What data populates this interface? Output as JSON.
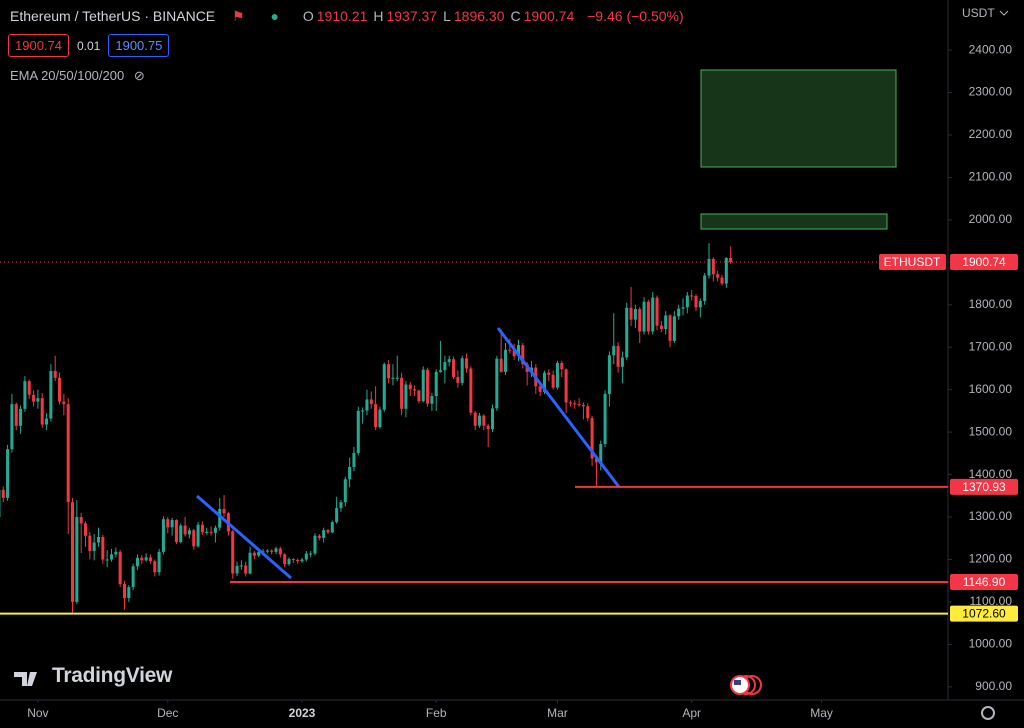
{
  "header": {
    "symbol": "Ethereum / TetherUS · BINANCE",
    "ohlc": [
      {
        "label": "O",
        "value": "1910.21"
      },
      {
        "label": "H",
        "value": "1937.37"
      },
      {
        "label": "L",
        "value": "1896.30"
      },
      {
        "label": "C",
        "value": "1900.74"
      }
    ],
    "change": "−9.46 (−0.50%)",
    "bid": "1900.74",
    "spread": "0.01",
    "ask": "1900.75",
    "indicator": "EMA 20/50/100/200",
    "currency": "USDT",
    "logo": "TradingView"
  },
  "chart_data": {
    "type": "candlestick",
    "up_color": "#22ab94",
    "down_color": "#f23645",
    "xlim": [
      0.25,
      219.2
    ],
    "ylim": [
      869,
      2518
    ],
    "xticks": [
      {
        "value": 9,
        "label": "Nov"
      },
      {
        "value": 39,
        "label": "Dec"
      },
      {
        "value": 70,
        "label": "2023"
      },
      {
        "value": 101,
        "label": "Feb"
      },
      {
        "value": 129,
        "label": "Mar"
      },
      {
        "value": 160,
        "label": "Apr"
      },
      {
        "value": 190,
        "label": "May"
      }
    ],
    "yticks": [
      {
        "value": 900,
        "label": "900.00"
      },
      {
        "value": 1000,
        "label": "1000.00"
      },
      {
        "value": 1100,
        "label": "1100.00"
      },
      {
        "value": 1200,
        "label": "1200.00"
      },
      {
        "value": 1300,
        "label": "1300.00"
      },
      {
        "value": 1400,
        "label": "1400.00"
      },
      {
        "value": 1500,
        "label": "1500.00"
      },
      {
        "value": 1600,
        "label": "1600.00"
      },
      {
        "value": 1700,
        "label": "1700.00"
      },
      {
        "value": 1800,
        "label": "1800.00"
      },
      {
        "value": 1900,
        "label": "1900.00"
      },
      {
        "value": 2000,
        "label": "2000.00"
      },
      {
        "value": 2100,
        "label": "2100.00"
      },
      {
        "value": 2200,
        "label": "2200.00"
      },
      {
        "value": 2300,
        "label": "2300.00"
      },
      {
        "value": 2400,
        "label": "2400.00"
      }
    ],
    "levels": [
      {
        "value": 1370.93,
        "color": "#f23645"
      },
      {
        "value": 1146.9,
        "label": "1146.90",
        "color": "#f23645"
      },
      {
        "value": 1072.6,
        "label": "1072.60",
        "color": "#ffeb3b"
      }
    ],
    "price_line": {
      "label": "ETHUSDT",
      "value": 1900.74
    },
    "candles": [
      [
        1300,
        1375,
        1290,
        1364
      ],
      [
        1364,
        1372,
        1335,
        1345
      ],
      [
        1345,
        1470,
        1338,
        1460
      ],
      [
        1460,
        1590,
        1452,
        1566
      ],
      [
        1566,
        1570,
        1505,
        1515
      ],
      [
        1515,
        1563,
        1496,
        1555
      ],
      [
        1555,
        1632,
        1548,
        1620
      ],
      [
        1620,
        1624,
        1578,
        1588
      ],
      [
        1588,
        1598,
        1560,
        1572
      ],
      [
        1572,
        1600,
        1555,
        1580
      ],
      [
        1580,
        1592,
        1510,
        1518
      ],
      [
        1518,
        1545,
        1505,
        1532
      ],
      [
        1532,
        1660,
        1525,
        1644
      ],
      [
        1644,
        1680,
        1620,
        1628
      ],
      [
        1628,
        1640,
        1565,
        1572
      ],
      [
        1572,
        1590,
        1540,
        1566
      ],
      [
        1566,
        1580,
        1260,
        1335
      ],
      [
        1335,
        1345,
        1073,
        1100
      ],
      [
        1100,
        1340,
        1095,
        1300
      ],
      [
        1300,
        1310,
        1215,
        1285
      ],
      [
        1285,
        1290,
        1230,
        1256
      ],
      [
        1256,
        1265,
        1200,
        1220
      ],
      [
        1220,
        1260,
        1198,
        1240
      ],
      [
        1240,
        1275,
        1230,
        1253
      ],
      [
        1253,
        1258,
        1190,
        1200
      ],
      [
        1200,
        1222,
        1182,
        1200
      ],
      [
        1200,
        1225,
        1195,
        1212
      ],
      [
        1212,
        1228,
        1205,
        1218
      ],
      [
        1218,
        1222,
        1135,
        1142
      ],
      [
        1142,
        1150,
        1081,
        1109
      ],
      [
        1109,
        1140,
        1100,
        1135
      ],
      [
        1135,
        1190,
        1128,
        1184
      ],
      [
        1184,
        1212,
        1175,
        1204
      ],
      [
        1204,
        1210,
        1190,
        1198
      ],
      [
        1198,
        1215,
        1195,
        1205
      ],
      [
        1205,
        1212,
        1190,
        1196
      ],
      [
        1196,
        1200,
        1160,
        1170
      ],
      [
        1170,
        1225,
        1162,
        1218
      ],
      [
        1218,
        1302,
        1212,
        1295
      ],
      [
        1295,
        1300,
        1262,
        1276
      ],
      [
        1276,
        1298,
        1256,
        1293
      ],
      [
        1293,
        1295,
        1236,
        1241
      ],
      [
        1241,
        1285,
        1238,
        1280
      ],
      [
        1280,
        1300,
        1254,
        1259
      ],
      [
        1259,
        1275,
        1250,
        1269
      ],
      [
        1269,
        1272,
        1223,
        1231
      ],
      [
        1231,
        1288,
        1228,
        1282
      ],
      [
        1282,
        1290,
        1258,
        1264
      ],
      [
        1264,
        1275,
        1258,
        1265
      ],
      [
        1265,
        1278,
        1256,
        1263
      ],
      [
        1263,
        1280,
        1240,
        1275
      ],
      [
        1275,
        1345,
        1268,
        1319
      ],
      [
        1319,
        1352,
        1300,
        1309
      ],
      [
        1309,
        1312,
        1256,
        1266
      ],
      [
        1266,
        1270,
        1155,
        1167
      ],
      [
        1167,
        1195,
        1161,
        1185
      ],
      [
        1185,
        1198,
        1176,
        1186
      ],
      [
        1186,
        1195,
        1160,
        1167
      ],
      [
        1167,
        1230,
        1165,
        1216
      ],
      [
        1216,
        1220,
        1201,
        1209
      ],
      [
        1209,
        1225,
        1205,
        1218
      ],
      [
        1218,
        1225,
        1212,
        1219
      ],
      [
        1219,
        1224,
        1215,
        1221
      ],
      [
        1221,
        1224,
        1212,
        1218
      ],
      [
        1218,
        1230,
        1213,
        1226
      ],
      [
        1226,
        1230,
        1205,
        1212
      ],
      [
        1212,
        1215,
        1182,
        1189
      ],
      [
        1189,
        1205,
        1185,
        1201
      ],
      [
        1201,
        1203,
        1192,
        1199
      ],
      [
        1199,
        1202,
        1190,
        1196
      ],
      [
        1196,
        1204,
        1192,
        1200
      ],
      [
        1200,
        1220,
        1195,
        1214
      ],
      [
        1214,
        1220,
        1205,
        1214
      ],
      [
        1214,
        1262,
        1210,
        1256
      ],
      [
        1256,
        1260,
        1245,
        1251
      ],
      [
        1251,
        1275,
        1240,
        1269
      ],
      [
        1269,
        1272,
        1260,
        1264
      ],
      [
        1264,
        1292,
        1262,
        1288
      ],
      [
        1288,
        1348,
        1284,
        1321
      ],
      [
        1321,
        1340,
        1312,
        1335
      ],
      [
        1335,
        1395,
        1325,
        1389
      ],
      [
        1389,
        1440,
        1370,
        1418
      ],
      [
        1418,
        1465,
        1408,
        1451
      ],
      [
        1451,
        1560,
        1445,
        1550
      ],
      [
        1550,
        1558,
        1520,
        1551
      ],
      [
        1551,
        1600,
        1540,
        1577
      ],
      [
        1577,
        1596,
        1555,
        1566
      ],
      [
        1566,
        1608,
        1505,
        1512
      ],
      [
        1512,
        1560,
        1508,
        1553
      ],
      [
        1553,
        1664,
        1548,
        1660
      ],
      [
        1660,
        1670,
        1615,
        1627
      ],
      [
        1627,
        1660,
        1610,
        1628
      ],
      [
        1628,
        1680,
        1620,
        1628
      ],
      [
        1628,
        1640,
        1540,
        1555
      ],
      [
        1555,
        1620,
        1535,
        1612
      ],
      [
        1612,
        1618,
        1585,
        1601
      ],
      [
        1601,
        1610,
        1585,
        1598
      ],
      [
        1598,
        1600,
        1568,
        1573
      ],
      [
        1573,
        1655,
        1570,
        1647
      ],
      [
        1647,
        1652,
        1560,
        1567
      ],
      [
        1567,
        1592,
        1550,
        1585
      ],
      [
        1585,
        1648,
        1550,
        1642
      ],
      [
        1642,
        1715,
        1640,
        1646
      ],
      [
        1646,
        1680,
        1615,
        1665
      ],
      [
        1665,
        1680,
        1655,
        1672
      ],
      [
        1672,
        1678,
        1625,
        1630
      ],
      [
        1630,
        1645,
        1605,
        1616
      ],
      [
        1616,
        1680,
        1610,
        1674
      ],
      [
        1674,
        1685,
        1640,
        1650
      ],
      [
        1650,
        1655,
        1540,
        1546
      ],
      [
        1546,
        1550,
        1505,
        1515
      ],
      [
        1515,
        1545,
        1510,
        1539
      ],
      [
        1539,
        1542,
        1505,
        1515
      ],
      [
        1515,
        1520,
        1465,
        1507
      ],
      [
        1507,
        1565,
        1500,
        1556
      ],
      [
        1556,
        1680,
        1550,
        1673
      ],
      [
        1673,
        1742,
        1640,
        1642
      ],
      [
        1642,
        1710,
        1635,
        1694
      ],
      [
        1694,
        1720,
        1685,
        1692
      ],
      [
        1692,
        1708,
        1670,
        1679
      ],
      [
        1679,
        1718,
        1668,
        1705
      ],
      [
        1705,
        1710,
        1650,
        1660
      ],
      [
        1660,
        1665,
        1610,
        1642
      ],
      [
        1642,
        1668,
        1630,
        1652
      ],
      [
        1652,
        1660,
        1590,
        1608
      ],
      [
        1608,
        1612,
        1585,
        1595
      ],
      [
        1595,
        1645,
        1590,
        1640
      ],
      [
        1640,
        1648,
        1620,
        1635
      ],
      [
        1635,
        1645,
        1600,
        1605
      ],
      [
        1605,
        1668,
        1600,
        1663
      ],
      [
        1663,
        1668,
        1630,
        1648
      ],
      [
        1648,
        1650,
        1545,
        1570
      ],
      [
        1570,
        1575,
        1560,
        1568
      ],
      [
        1568,
        1575,
        1555,
        1566
      ],
      [
        1566,
        1580,
        1560,
        1564
      ],
      [
        1564,
        1570,
        1530,
        1561
      ],
      [
        1561,
        1568,
        1525,
        1533
      ],
      [
        1533,
        1538,
        1420,
        1438
      ],
      [
        1438,
        1442,
        1371,
        1429
      ],
      [
        1429,
        1480,
        1410,
        1472
      ],
      [
        1472,
        1598,
        1465,
        1590
      ],
      [
        1590,
        1690,
        1560,
        1681
      ],
      [
        1681,
        1780,
        1660,
        1703
      ],
      [
        1703,
        1712,
        1640,
        1654
      ],
      [
        1654,
        1690,
        1615,
        1676
      ],
      [
        1676,
        1805,
        1670,
        1793
      ],
      [
        1793,
        1842,
        1750,
        1765
      ],
      [
        1765,
        1800,
        1745,
        1790
      ],
      [
        1790,
        1795,
        1710,
        1737
      ],
      [
        1737,
        1818,
        1730,
        1807
      ],
      [
        1807,
        1812,
        1730,
        1737
      ],
      [
        1737,
        1830,
        1730,
        1817
      ],
      [
        1817,
        1822,
        1740,
        1751
      ],
      [
        1751,
        1762,
        1735,
        1743
      ],
      [
        1743,
        1785,
        1730,
        1775
      ],
      [
        1775,
        1778,
        1700,
        1715
      ],
      [
        1715,
        1785,
        1710,
        1773
      ],
      [
        1773,
        1800,
        1765,
        1791
      ],
      [
        1791,
        1815,
        1775,
        1794
      ],
      [
        1794,
        1830,
        1780,
        1822
      ],
      [
        1822,
        1835,
        1810,
        1821
      ],
      [
        1821,
        1825,
        1785,
        1794
      ],
      [
        1794,
        1815,
        1770,
        1809
      ],
      [
        1809,
        1875,
        1800,
        1869
      ],
      [
        1869,
        1945,
        1862,
        1908
      ],
      [
        1908,
        1912,
        1855,
        1872
      ],
      [
        1872,
        1880,
        1855,
        1864
      ],
      [
        1864,
        1870,
        1845,
        1850
      ],
      [
        1850,
        1912,
        1840,
        1910.21
      ],
      [
        1910.21,
        1937.37,
        1896.3,
        1900.74
      ]
    ]
  }
}
